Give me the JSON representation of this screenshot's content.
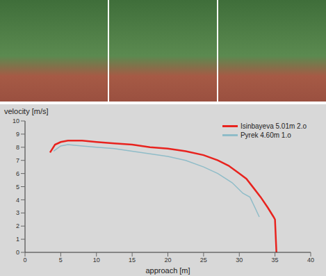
{
  "chart_data": {
    "type": "line",
    "x_label": "approach [m]",
    "y_label": "velocity [m/s]",
    "xlim": [
      0,
      40
    ],
    "xticks": [
      0,
      5,
      10,
      15,
      20,
      25,
      30,
      35,
      40
    ],
    "ylim": [
      0,
      10
    ],
    "yticks": [
      0,
      1,
      2,
      3,
      4,
      5,
      6,
      7,
      8,
      9,
      10
    ],
    "grid": false,
    "legend": "upper right",
    "series": [
      {
        "name": "Isinbayeva 5.01m 2.o",
        "color": "#e8231e",
        "x": [
          3.5,
          4.2,
          5.0,
          6.0,
          7.0,
          8.0,
          10.0,
          12.5,
          15.0,
          17.5,
          20.0,
          22.5,
          25.0,
          27.0,
          28.5,
          30.0,
          31.0,
          32.0,
          33.0,
          34.0,
          34.8,
          35.0,
          35.2
        ],
        "values": [
          7.6,
          8.2,
          8.4,
          8.5,
          8.5,
          8.5,
          8.4,
          8.3,
          8.2,
          8.0,
          7.9,
          7.7,
          7.4,
          7.0,
          6.6,
          6.0,
          5.6,
          4.9,
          4.2,
          3.4,
          2.7,
          2.5,
          0
        ]
      },
      {
        "name": "Pyrek 4.60m 1.o",
        "color": "#8fbcc8",
        "x": [
          4.0,
          5.0,
          6.0,
          8.0,
          10.0,
          12.5,
          15.0,
          17.5,
          20.0,
          22.5,
          25.0,
          27.0,
          29.0,
          30.5,
          31.5,
          32.2,
          32.8
        ],
        "values": [
          7.7,
          8.1,
          8.2,
          8.1,
          8.0,
          7.9,
          7.7,
          7.5,
          7.3,
          7.0,
          6.5,
          6.0,
          5.3,
          4.5,
          4.2,
          3.4,
          2.7
        ]
      }
    ]
  }
}
